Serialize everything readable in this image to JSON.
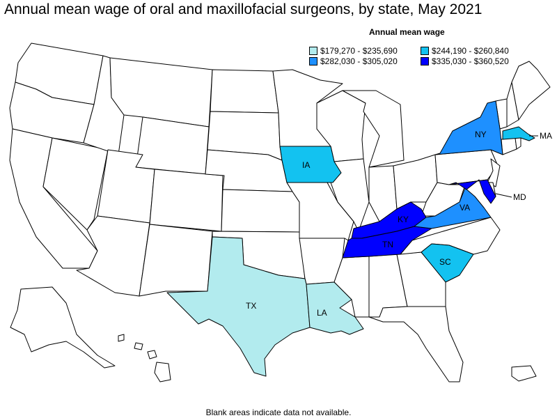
{
  "title": "Annual mean wage of oral and maxillofacial surgeons, by state, May 2021",
  "legend": {
    "title": "Annual mean wage",
    "bins": [
      {
        "label": "$179,270 - $235,690",
        "color": "#b2ebee"
      },
      {
        "label": "$244,190 - $260,840",
        "color": "#13c2f0"
      },
      {
        "label": "$282,030 - $305,020",
        "color": "#1e90ff"
      },
      {
        "label": "$335,030 - $360,520",
        "color": "#0000ff"
      }
    ]
  },
  "states": {
    "TX": {
      "label": "TX",
      "bin": 0
    },
    "LA": {
      "label": "LA",
      "bin": 0
    },
    "IA": {
      "label": "IA",
      "bin": 1
    },
    "SC": {
      "label": "SC",
      "bin": 1
    },
    "MA": {
      "label": "MA",
      "bin": 1
    },
    "NY": {
      "label": "NY",
      "bin": 2
    },
    "VA": {
      "label": "VA",
      "bin": 2
    },
    "KY": {
      "label": "KY",
      "bin": 3
    },
    "TN": {
      "label": "TN",
      "bin": 3
    },
    "MD": {
      "label": "MD",
      "bin": 3
    }
  },
  "footnote": "Blank areas indicate data not available."
}
